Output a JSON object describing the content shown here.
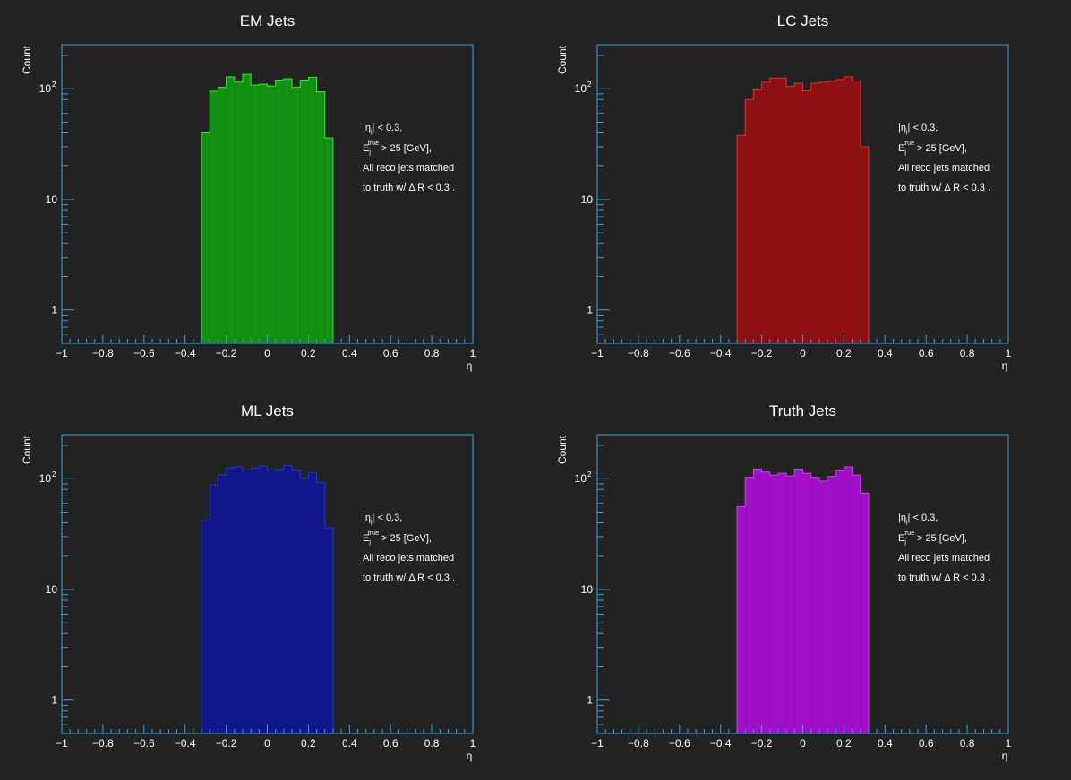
{
  "chart_data": [
    {
      "type": "bar",
      "title": "EM Jets",
      "xlabel": "η",
      "ylabel": "Count",
      "xlim": [
        -1,
        1
      ],
      "ylim": [
        0.5,
        250
      ],
      "yscale": "log",
      "xticks": [
        "−1",
        "−0.8",
        "−0.6",
        "−0.4",
        "−0.2",
        "0",
        "0.2",
        "0.4",
        "0.6",
        "0.8",
        "1"
      ],
      "yticks": [
        {
          "value": 1,
          "label": "1"
        },
        {
          "value": 10,
          "label": "10"
        },
        {
          "value": 100,
          "label": "10",
          "exp": "2"
        }
      ],
      "color": "#119011",
      "edge_color": "#33ee33",
      "bin_edges": [
        -0.32,
        -0.28,
        -0.24,
        -0.2,
        -0.16,
        -0.12,
        -0.08,
        -0.04,
        0.0,
        0.04,
        0.08,
        0.12,
        0.16,
        0.2,
        0.24,
        0.28,
        0.32
      ],
      "values": [
        40,
        95,
        103,
        128,
        115,
        135,
        108,
        110,
        106,
        120,
        123,
        103,
        120,
        127,
        94,
        36
      ],
      "annotation": {
        "line1_a": "|η",
        "line1_sub": "j",
        "line1_b": "| < 0.3,",
        "line2_a": "E",
        "line2_sub": "j",
        "line2_sup": "true",
        "line2_b": " > 25 [GeV],",
        "line3": "All reco jets matched",
        "line4": "to truth w/ Δ R < 0.3 ."
      }
    },
    {
      "type": "bar",
      "title": "LC Jets",
      "xlabel": "η",
      "ylabel": "Count",
      "xlim": [
        -1,
        1
      ],
      "ylim": [
        0.5,
        250
      ],
      "yscale": "log",
      "xticks": [
        "−1",
        "−0.8",
        "−0.6",
        "−0.4",
        "−0.2",
        "0",
        "0.2",
        "0.4",
        "0.6",
        "0.8",
        "1"
      ],
      "yticks": [
        {
          "value": 1,
          "label": "1"
        },
        {
          "value": 10,
          "label": "10"
        },
        {
          "value": 100,
          "label": "10",
          "exp": "2"
        }
      ],
      "color": "#8e1111",
      "edge_color": "#d83030",
      "bin_edges": [
        -0.32,
        -0.28,
        -0.24,
        -0.2,
        -0.16,
        -0.12,
        -0.08,
        -0.04,
        0.0,
        0.04,
        0.08,
        0.12,
        0.16,
        0.2,
        0.24,
        0.28,
        0.32
      ],
      "values": [
        38,
        80,
        98,
        115,
        125,
        125,
        105,
        112,
        96,
        112,
        115,
        117,
        121,
        128,
        118,
        30
      ],
      "annotation": {
        "line1_a": "|η",
        "line1_sub": "j",
        "line1_b": "| < 0.3,",
        "line2_a": "E",
        "line2_sub": "j",
        "line2_sup": "true",
        "line2_b": " > 25 [GeV],",
        "line3": "All reco jets matched",
        "line4": "to truth w/ Δ R < 0.3 ."
      }
    },
    {
      "type": "bar",
      "title": "ML Jets",
      "xlabel": "η",
      "ylabel": "Count",
      "xlim": [
        -1,
        1
      ],
      "ylim": [
        0.5,
        250
      ],
      "yscale": "log",
      "xticks": [
        "−1",
        "−0.8",
        "−0.6",
        "−0.4",
        "−0.2",
        "0",
        "0.2",
        "0.4",
        "0.6",
        "0.8",
        "1"
      ],
      "yticks": [
        {
          "value": 1,
          "label": "1"
        },
        {
          "value": 10,
          "label": "10"
        },
        {
          "value": 100,
          "label": "10",
          "exp": "2"
        }
      ],
      "color": "#11188e",
      "edge_color": "#2a34c8",
      "bin_edges": [
        -0.32,
        -0.28,
        -0.24,
        -0.2,
        -0.16,
        -0.12,
        -0.08,
        -0.04,
        0.0,
        0.04,
        0.08,
        0.12,
        0.16,
        0.2,
        0.24,
        0.28,
        0.32
      ],
      "values": [
        42,
        88,
        108,
        125,
        128,
        118,
        125,
        130,
        118,
        122,
        132,
        120,
        102,
        114,
        92,
        36
      ],
      "annotation": {
        "line1_a": "|η",
        "line1_sub": "j",
        "line1_b": "| < 0.3,",
        "line2_a": "E",
        "line2_sub": "j",
        "line2_sup": "true",
        "line2_b": " > 25 [GeV],",
        "line3": "All reco jets matched",
        "line4": "to truth w/ Δ R < 0.3 ."
      }
    },
    {
      "type": "bar",
      "title": "Truth Jets",
      "xlabel": "η",
      "ylabel": "Count",
      "xlim": [
        -1,
        1
      ],
      "ylim": [
        0.5,
        250
      ],
      "yscale": "log",
      "xticks": [
        "−1",
        "−0.8",
        "−0.6",
        "−0.4",
        "−0.2",
        "0",
        "0.2",
        "0.4",
        "0.6",
        "0.8",
        "1"
      ],
      "yticks": [
        {
          "value": 1,
          "label": "1"
        },
        {
          "value": 10,
          "label": "10"
        },
        {
          "value": 100,
          "label": "10",
          "exp": "2"
        }
      ],
      "color": "#a010c8",
      "edge_color": "#d040ee",
      "bin_edges": [
        -0.32,
        -0.28,
        -0.24,
        -0.2,
        -0.16,
        -0.12,
        -0.08,
        -0.04,
        0.0,
        0.04,
        0.08,
        0.12,
        0.16,
        0.2,
        0.24,
        0.28,
        0.32
      ],
      "values": [
        56,
        103,
        122,
        115,
        108,
        112,
        106,
        122,
        112,
        103,
        95,
        105,
        120,
        128,
        108,
        74
      ],
      "annotation": {
        "line1_a": "|η",
        "line1_sub": "j",
        "line1_b": "| < 0.3,",
        "line2_a": "E",
        "line2_sub": "j",
        "line2_sup": "true",
        "line2_b": " > 25 [GeV],",
        "line3": "All reco jets matched",
        "line4": "to truth w/ Δ R < 0.3 ."
      }
    }
  ]
}
